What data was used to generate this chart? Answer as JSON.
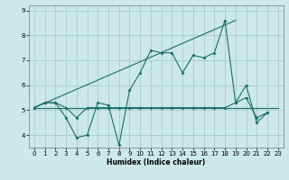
{
  "xlabel": "Humidex (Indice chaleur)",
  "background_color": "#cce8e8",
  "grid_color": "#aacccc",
  "line_color": "#1a6e6a",
  "x_values": [
    0,
    1,
    2,
    3,
    4,
    5,
    6,
    7,
    8,
    9,
    10,
    11,
    12,
    13,
    14,
    15,
    16,
    17,
    18,
    19,
    20,
    21,
    22,
    23
  ],
  "curve1": [
    5.1,
    5.3,
    5.3,
    4.7,
    3.9,
    4.0,
    5.3,
    5.2,
    3.6,
    5.8,
    6.5,
    7.4,
    7.3,
    7.3,
    6.5,
    7.2,
    7.1,
    7.3,
    8.6,
    5.3,
    6.0,
    4.5,
    4.9,
    null
  ],
  "curve2": [
    5.1,
    5.3,
    5.3,
    5.1,
    4.7,
    5.1,
    5.1,
    5.1,
    5.1,
    5.1,
    5.1,
    5.1,
    5.1,
    5.1,
    5.1,
    5.1,
    5.1,
    5.1,
    5.1,
    5.3,
    5.5,
    4.7,
    4.9,
    null
  ],
  "trend_line1_x": [
    0,
    19
  ],
  "trend_line1_y": [
    5.1,
    8.6
  ],
  "trend_line2_x": [
    0,
    23
  ],
  "trend_line2_y": [
    5.1,
    5.1
  ],
  "ylim": [
    3.5,
    9.2
  ],
  "xlim": [
    -0.5,
    23.5
  ],
  "yticks": [
    4,
    5,
    6,
    7,
    8,
    9
  ],
  "xticks": [
    0,
    1,
    2,
    3,
    4,
    5,
    6,
    7,
    8,
    9,
    10,
    11,
    12,
    13,
    14,
    15,
    16,
    17,
    18,
    19,
    20,
    21,
    22,
    23
  ]
}
